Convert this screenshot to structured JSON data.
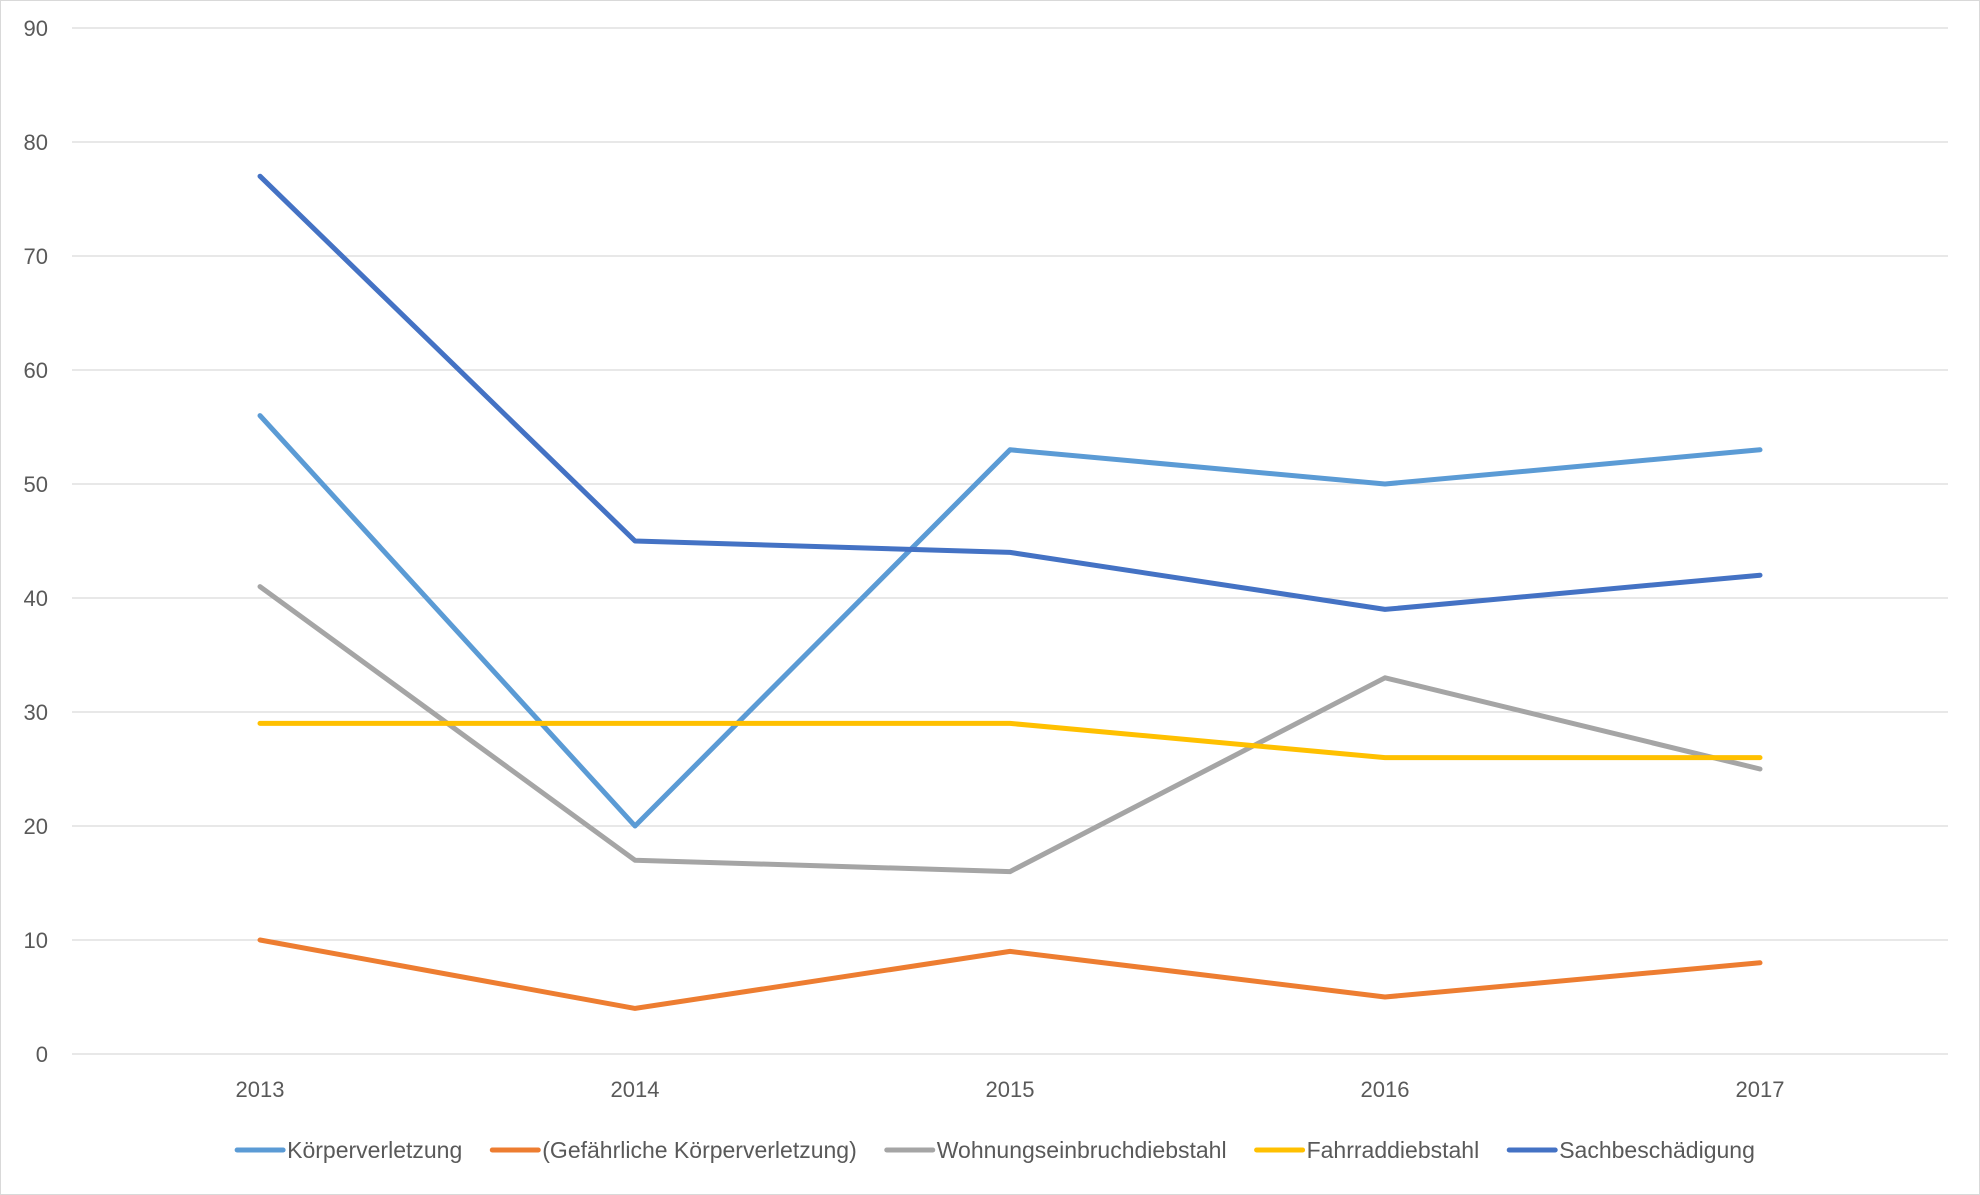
{
  "chart_data": {
    "type": "line",
    "title": "",
    "xlabel": "",
    "ylabel": "",
    "categories": [
      "2013",
      "2014",
      "2015",
      "2016",
      "2017"
    ],
    "ylim": [
      0,
      90
    ],
    "yticks": [
      "0",
      "10",
      "20",
      "30",
      "40",
      "50",
      "60",
      "70",
      "80",
      "90"
    ],
    "grid": true,
    "legend_position": "bottom",
    "series": [
      {
        "name": "Körperverletzung",
        "color": "#5B9BD5",
        "values": [
          56,
          20,
          53,
          50,
          53
        ]
      },
      {
        "name": "(Gefährliche Körperverletzung)",
        "color": "#ED7D31",
        "values": [
          10,
          4,
          9,
          5,
          8
        ]
      },
      {
        "name": "Wohnungseinbruchdiebstahl",
        "color": "#A5A5A5",
        "values": [
          41,
          17,
          16,
          33,
          25
        ]
      },
      {
        "name": "Fahrraddiebstahl",
        "color": "#FFC000",
        "values": [
          29,
          29,
          29,
          26,
          26
        ]
      },
      {
        "name": "Sachbeschädigung",
        "color": "#4472C4",
        "values": [
          77,
          45,
          44,
          39,
          42
        ]
      }
    ]
  }
}
